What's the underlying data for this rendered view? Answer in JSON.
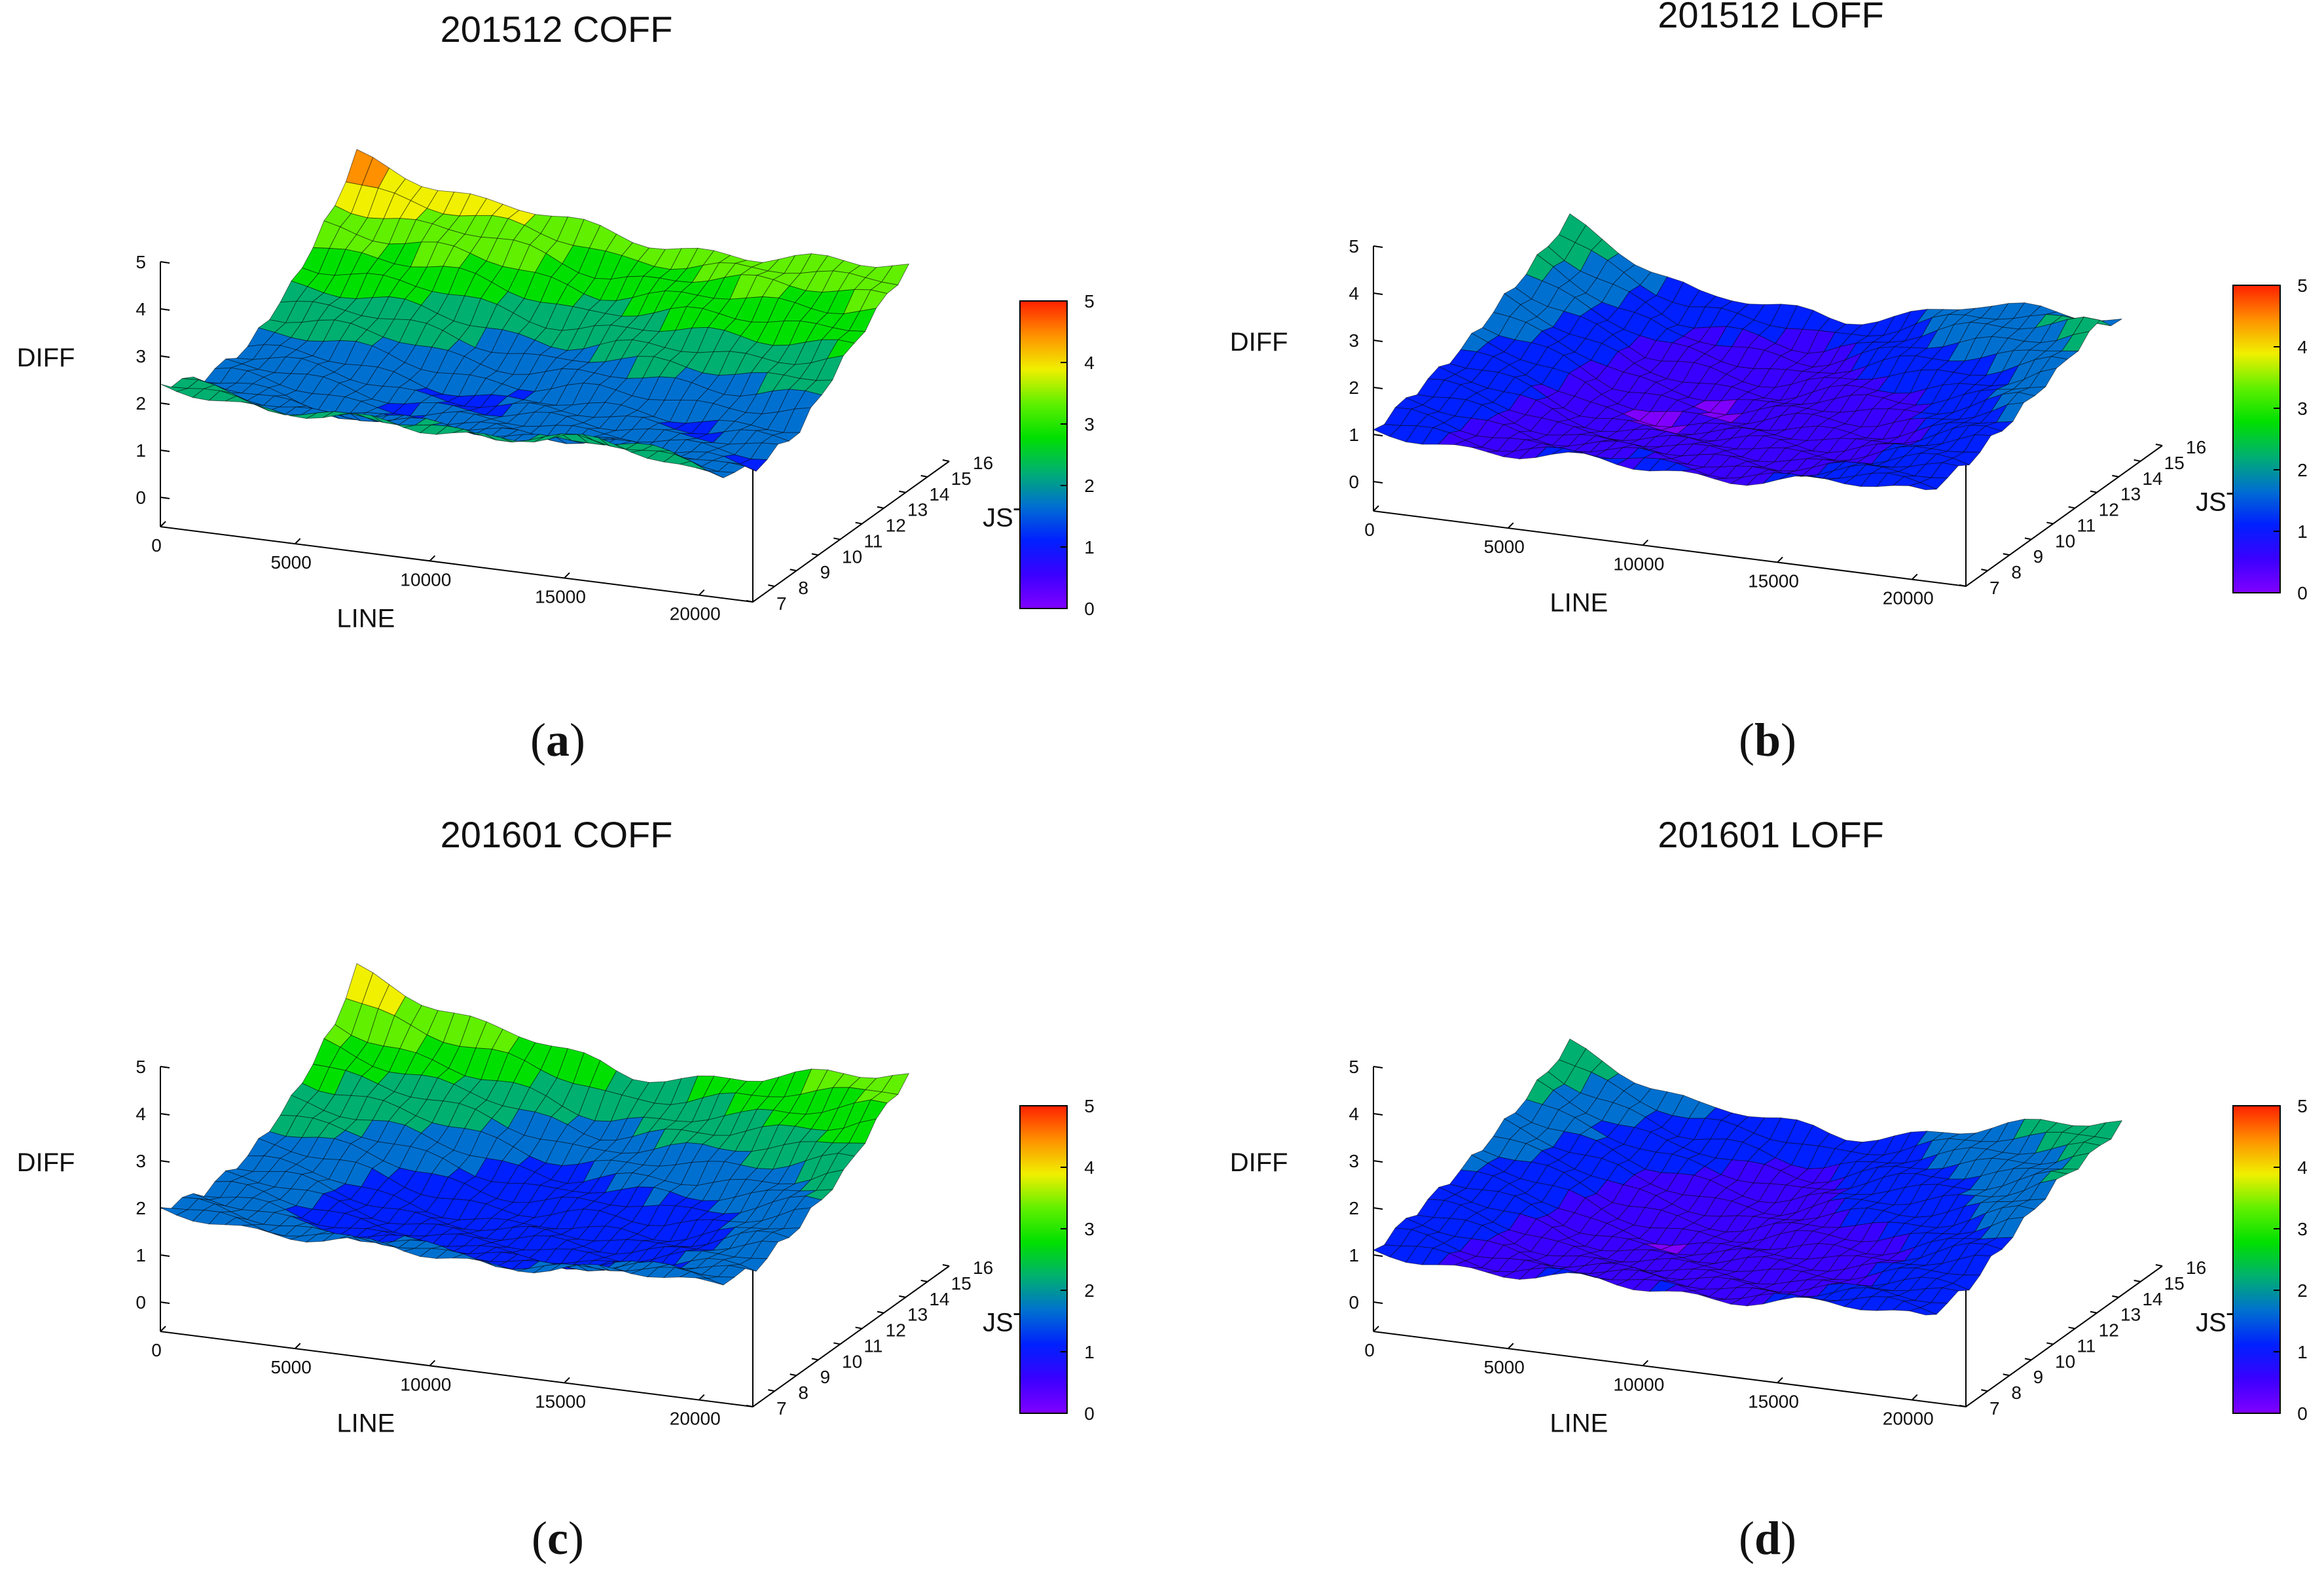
{
  "figure": {
    "captions": [
      {
        "open": "(",
        "letter": "a",
        "close": ")"
      },
      {
        "open": "(",
        "letter": "b",
        "close": ")"
      },
      {
        "open": "(",
        "letter": "c",
        "close": ")"
      },
      {
        "open": "(",
        "letter": "d",
        "close": ")"
      }
    ]
  },
  "colors": {
    "palette": [
      "#8000ff",
      "#3a00ff",
      "#0020ff",
      "#0070d0",
      "#00b070",
      "#00e000",
      "#60f000",
      "#f0f000",
      "#ff9000",
      "#ff2000"
    ],
    "mesh": "#000000",
    "axis": "#000000"
  },
  "chart_data": [
    {
      "type": "surface3d",
      "title": "201512 COFF",
      "xlabel": "LINE",
      "ylabel": "JST",
      "zlabel": "DIFF",
      "xlim": [
        0,
        22000
      ],
      "ylim": [
        7,
        16
      ],
      "zlim": [
        0,
        5
      ],
      "xticks": [
        "0",
        "5000",
        "10000",
        "15000",
        "20000"
      ],
      "yticks": [
        "7",
        "8",
        "9",
        "10",
        "11",
        "12",
        "13",
        "14",
        "15",
        "16"
      ],
      "zticks": [
        "0",
        "1",
        "2",
        "3",
        "4",
        "5"
      ],
      "colorbar_ticks": [
        "0",
        "1",
        "2",
        "3",
        "4",
        "5"
      ],
      "line_samples": [
        0,
        5000,
        10000,
        15000,
        20000
      ],
      "jst_rows": [
        7,
        9,
        11,
        13,
        15,
        16
      ],
      "z_values": [
        [
          2.3,
          2.2,
          2.1,
          2.4,
          2.0
        ],
        [
          1.8,
          1.6,
          1.5,
          1.7,
          1.4
        ],
        [
          1.9,
          1.7,
          1.4,
          1.6,
          1.5
        ],
        [
          2.6,
          2.3,
          2.0,
          2.2,
          2.4
        ],
        [
          3.6,
          3.3,
          2.8,
          3.0,
          3.2
        ],
        [
          4.3,
          3.6,
          3.3,
          3.1,
          3.5
        ]
      ]
    },
    {
      "type": "surface3d",
      "title": "201512 LOFF",
      "xlabel": "LINE",
      "ylabel": "JST",
      "zlabel": "DIFF",
      "xlim": [
        0,
        22000
      ],
      "ylim": [
        7,
        16
      ],
      "zlim": [
        0,
        5
      ],
      "xticks": [
        "0",
        "5000",
        "10000",
        "15000",
        "20000"
      ],
      "yticks": [
        "7",
        "8",
        "9",
        "10",
        "11",
        "12",
        "13",
        "14",
        "15",
        "16"
      ],
      "zticks": [
        "0",
        "1",
        "2",
        "3",
        "4",
        "5"
      ],
      "colorbar_ticks": [
        "0",
        "1",
        "2",
        "3",
        "4",
        "5"
      ],
      "line_samples": [
        0,
        5000,
        10000,
        15000,
        20000
      ],
      "jst_rows": [
        7,
        9,
        11,
        13,
        15,
        16
      ],
      "z_values": [
        [
          1.0,
          1.0,
          1.0,
          1.1,
          1.3
        ],
        [
          1.2,
          0.8,
          0.7,
          0.9,
          1.2
        ],
        [
          1.5,
          0.6,
          0.5,
          0.8,
          1.4
        ],
        [
          2.0,
          0.7,
          0.6,
          1.0,
          1.8
        ],
        [
          2.4,
          1.0,
          0.9,
          1.6,
          2.3
        ],
        [
          2.6,
          1.3,
          1.2,
          1.8,
          2.0
        ]
      ]
    },
    {
      "type": "surface3d",
      "title": "201601 COFF",
      "xlabel": "LINE",
      "ylabel": "JST",
      "zlabel": "DIFF",
      "xlim": [
        0,
        22000
      ],
      "ylim": [
        7,
        16
      ],
      "zlim": [
        0,
        5
      ],
      "xticks": [
        "0",
        "5000",
        "10000",
        "15000",
        "20000"
      ],
      "yticks": [
        "7",
        "8",
        "9",
        "10",
        "11",
        "12",
        "13",
        "14",
        "15",
        "16"
      ],
      "zticks": [
        "0",
        "1",
        "2",
        "3",
        "4",
        "5"
      ],
      "colorbar_ticks": [
        "0",
        "1",
        "2",
        "3",
        "4",
        "5"
      ],
      "line_samples": [
        0,
        5000,
        10000,
        15000,
        20000
      ],
      "jst_rows": [
        7,
        9,
        11,
        13,
        15,
        16
      ],
      "z_values": [
        [
          1.9,
          1.8,
          1.7,
          1.8,
          1.9
        ],
        [
          1.6,
          1.4,
          1.1,
          1.3,
          1.5
        ],
        [
          1.8,
          1.3,
          1.0,
          1.2,
          1.7
        ],
        [
          2.4,
          1.8,
          1.4,
          1.6,
          2.2
        ],
        [
          3.3,
          2.5,
          2.0,
          2.3,
          3.1
        ],
        [
          4.1,
          3.2,
          2.6,
          2.8,
          3.4
        ]
      ]
    },
    {
      "type": "surface3d",
      "title": "201601 LOFF",
      "xlabel": "LINE",
      "ylabel": "JST",
      "zlabel": "DIFF",
      "xlim": [
        0,
        22000
      ],
      "ylim": [
        7,
        16
      ],
      "zlim": [
        0,
        5
      ],
      "xticks": [
        "0",
        "5000",
        "10000",
        "15000",
        "20000"
      ],
      "yticks": [
        "7",
        "8",
        "9",
        "10",
        "11",
        "12",
        "13",
        "14",
        "15",
        "16"
      ],
      "zticks": [
        "0",
        "1",
        "2",
        "3",
        "4",
        "5"
      ],
      "colorbar_ticks": [
        "0",
        "1",
        "2",
        "3",
        "4",
        "5"
      ],
      "line_samples": [
        0,
        5000,
        10000,
        15000,
        20000
      ],
      "jst_rows": [
        7,
        9,
        11,
        13,
        15,
        16
      ],
      "z_values": [
        [
          1.0,
          1.0,
          1.0,
          1.1,
          1.2
        ],
        [
          1.2,
          0.8,
          0.6,
          0.9,
          1.1
        ],
        [
          1.5,
          0.7,
          0.5,
          0.9,
          1.5
        ],
        [
          1.9,
          0.9,
          0.7,
          1.2,
          2.0
        ],
        [
          2.3,
          1.2,
          1.0,
          1.5,
          2.2
        ],
        [
          2.5,
          1.5,
          1.3,
          1.7,
          2.4
        ]
      ]
    }
  ]
}
